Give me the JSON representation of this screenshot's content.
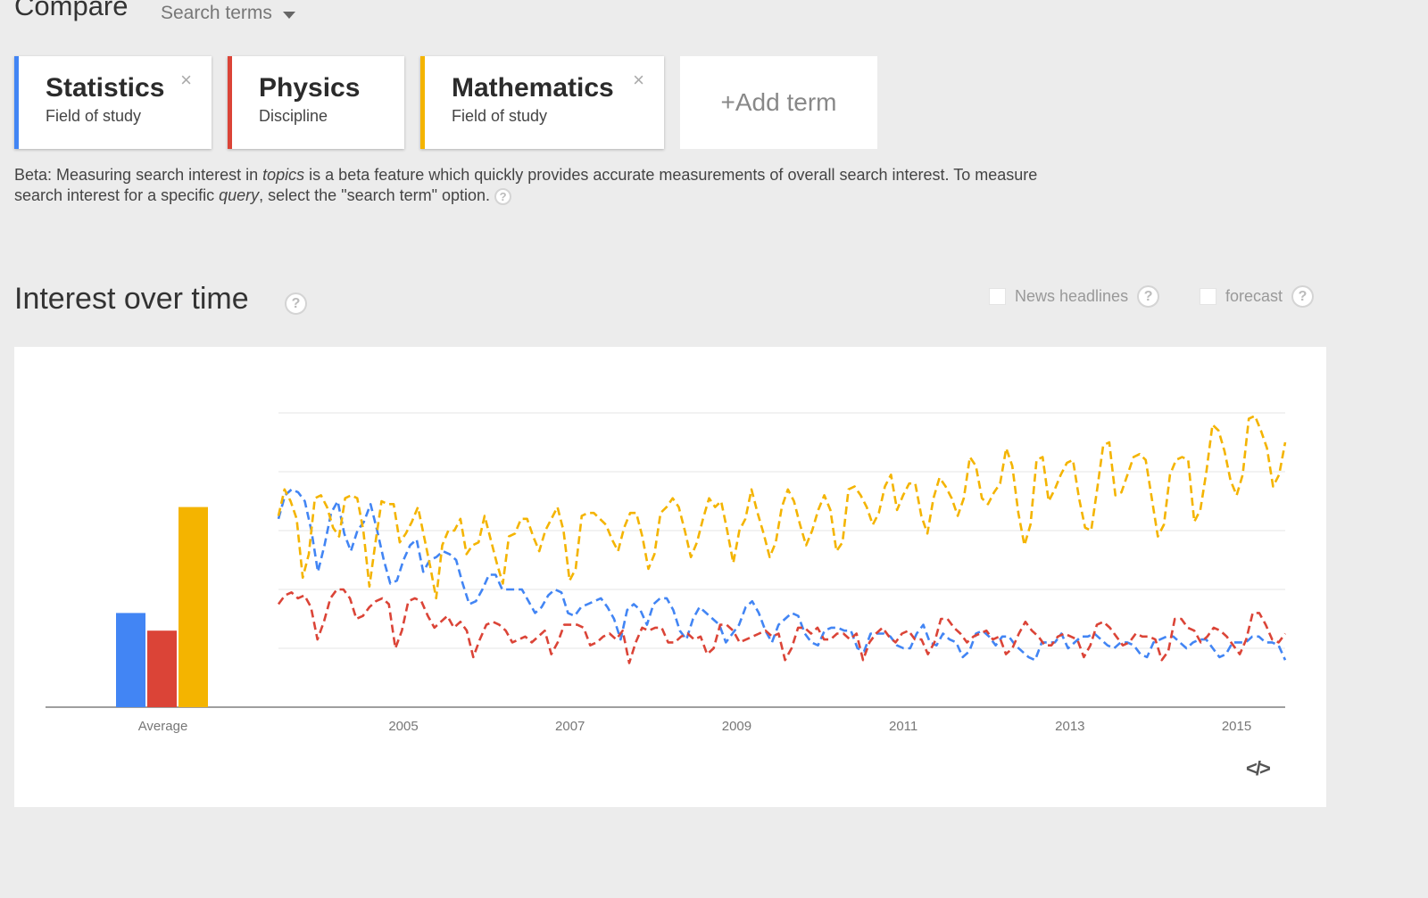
{
  "header": {
    "title": "Compare",
    "dropdown_label": "Search terms"
  },
  "terms": [
    {
      "title": "Statistics",
      "subtitle": "Field of study",
      "color": "#4285f4",
      "close": "×"
    },
    {
      "title": "Physics",
      "subtitle": "Discipline",
      "color": "#db4437",
      "close": ""
    },
    {
      "title": "Mathematics",
      "subtitle": "Field of study",
      "color": "#f4b400",
      "close": "×"
    }
  ],
  "add_term": {
    "label": "+Add term"
  },
  "beta_note": {
    "part1": "Beta: Measuring search interest in ",
    "em1": "topics",
    "part2": " is a beta feature which quickly provides accurate measurements of overall search interest. To measure search interest for a specific ",
    "em2": "query",
    "part3": ", select the \"search term\" option."
  },
  "section": {
    "title": "Interest over time",
    "help": "?"
  },
  "options": {
    "news_label": "News headlines",
    "forecast_label": "forecast"
  },
  "embed_icon": "</>",
  "chart_data": {
    "type": "line",
    "grid": true,
    "ylim": [
      0,
      100
    ],
    "x_start": "2004-01",
    "x_end": "2016-02",
    "x_ticks": [
      "2005",
      "2007",
      "2009",
      "2011",
      "2013",
      "2015"
    ],
    "average_label": "Average",
    "averages": [
      {
        "color": "#4285f4",
        "value": 32
      },
      {
        "color": "#db4437",
        "value": 26
      },
      {
        "color": "#f4b400",
        "value": 68
      }
    ],
    "series": [
      {
        "color": "#4285f4",
        "dashed": true,
        "values": [
          64,
          72,
          74,
          73,
          70,
          60,
          46,
          55,
          66,
          70,
          59,
          53,
          60,
          63,
          69,
          60,
          50,
          42,
          43,
          50,
          55,
          57,
          46,
          50,
          51,
          53,
          52,
          50,
          42,
          35,
          36,
          40,
          45,
          45,
          40,
          40,
          40,
          40,
          36,
          32,
          34,
          38,
          40,
          39,
          32,
          31,
          34,
          35,
          36,
          37,
          34,
          30,
          23,
          33,
          35,
          33,
          28,
          35,
          37,
          37,
          33,
          26,
          23,
          30,
          34,
          32,
          30,
          28,
          22,
          25,
          28,
          34,
          36,
          32,
          26,
          22,
          28,
          30,
          32,
          31,
          25,
          22,
          21,
          26,
          27,
          27,
          26,
          26,
          20,
          19,
          25,
          25,
          25,
          24,
          21,
          20,
          20,
          25,
          28,
          22,
          21,
          25,
          23,
          22,
          17,
          19,
          25,
          26,
          24,
          21,
          24,
          24,
          21,
          19,
          17,
          16,
          22,
          22,
          22,
          25,
          20,
          22,
          24,
          24,
          25,
          23,
          21,
          20,
          22,
          22,
          21,
          18,
          17,
          22,
          23,
          24,
          24,
          22,
          20,
          22,
          23,
          23,
          20,
          17,
          18,
          22,
          22,
          22,
          24,
          24,
          22,
          22,
          21,
          16
        ]
      },
      {
        "color": "#db4437",
        "dashed": true,
        "values": [
          35,
          38,
          39,
          37,
          38,
          34,
          23,
          29,
          37,
          40,
          40,
          37,
          30,
          31,
          34,
          36,
          37,
          35,
          20,
          26,
          36,
          37,
          36,
          31,
          27,
          29,
          31,
          27,
          29,
          26,
          17,
          23,
          28,
          29,
          28,
          26,
          22,
          23,
          24,
          22,
          24,
          26,
          18,
          22,
          28,
          28,
          28,
          27,
          21,
          22,
          24,
          25,
          23,
          26,
          15,
          22,
          27,
          26,
          27,
          27,
          22,
          22,
          24,
          25,
          23,
          24,
          18,
          20,
          28,
          28,
          26,
          22,
          23,
          24,
          25,
          26,
          24,
          25,
          16,
          20,
          27,
          27,
          25,
          27,
          23,
          23,
          25,
          25,
          23,
          25,
          16,
          22,
          25,
          27,
          24,
          22,
          25,
          26,
          23,
          23,
          18,
          22,
          30,
          30,
          27,
          25,
          22,
          24,
          25,
          26,
          23,
          24,
          18,
          20,
          25,
          29,
          26,
          24,
          21,
          21,
          24,
          25,
          24,
          23,
          17,
          21,
          28,
          29,
          27,
          24,
          21,
          22,
          25,
          24,
          24,
          23,
          16,
          19,
          30,
          30,
          27,
          26,
          22,
          24,
          27,
          26,
          24,
          21,
          18,
          23,
          32,
          32,
          28,
          23,
          22,
          25
        ]
      },
      {
        "color": "#f4b400",
        "dashed": true,
        "values": [
          65,
          74,
          70,
          64,
          44,
          52,
          71,
          72,
          68,
          61,
          58,
          71,
          72,
          71,
          60,
          41,
          56,
          70,
          69,
          69,
          56,
          59,
          63,
          68,
          58,
          48,
          37,
          55,
          60,
          60,
          64,
          52,
          55,
          56,
          65,
          57,
          49,
          42,
          58,
          59,
          64,
          64,
          58,
          53,
          60,
          64,
          68,
          60,
          43,
          47,
          65,
          66,
          66,
          64,
          62,
          57,
          53,
          61,
          66,
          66,
          58,
          47,
          52,
          66,
          68,
          71,
          68,
          60,
          51,
          56,
          64,
          71,
          68,
          70,
          60,
          49,
          60,
          64,
          74,
          66,
          59,
          51,
          56,
          68,
          74,
          70,
          62,
          55,
          60,
          67,
          72,
          67,
          53,
          56,
          74,
          75,
          72,
          68,
          62,
          66,
          75,
          79,
          67,
          72,
          76,
          76,
          65,
          59,
          71,
          78,
          75,
          71,
          65,
          71,
          85,
          82,
          71,
          69,
          73,
          76,
          88,
          82,
          66,
          55,
          62,
          84,
          85,
          70,
          74,
          79,
          83,
          84,
          71,
          61,
          60,
          74,
          89,
          90,
          72,
          73,
          79,
          85,
          86,
          84,
          71,
          58,
          62,
          79,
          84,
          85,
          84,
          63,
          67,
          80,
          96,
          94,
          87,
          77,
          72,
          79,
          98,
          99,
          94,
          88,
          75,
          79,
          90
        ]
      }
    ]
  }
}
